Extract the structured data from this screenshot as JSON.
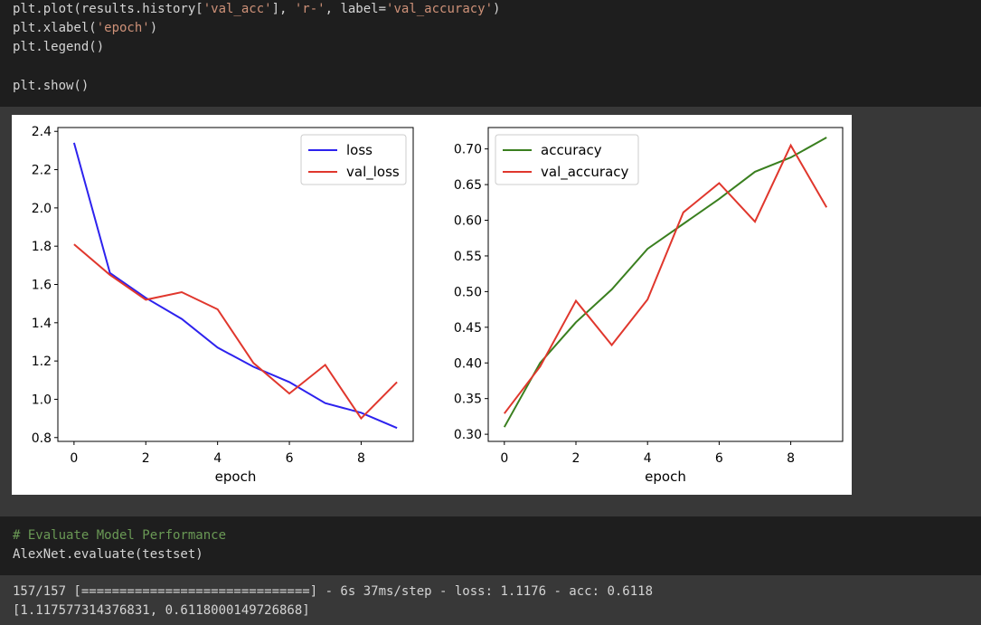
{
  "code_cell_1": {
    "lines": [
      {
        "prefix": "plt.plot(results.history[",
        "str1": "'val_acc'",
        "mid": "], ",
        "str2": "'r-'",
        "mid2": ", label=",
        "str3": "'val_accuracy'",
        "suffix": ")"
      },
      {
        "prefix": "plt.xlabel(",
        "str1": "'epoch'",
        "suffix": ")"
      },
      {
        "text": "plt.legend()"
      },
      {
        "text": ""
      },
      {
        "text": "plt.show()"
      }
    ]
  },
  "chart_data": [
    {
      "type": "line",
      "xlabel": "epoch",
      "ylabel": "",
      "xlim": [
        -0.45,
        9.45
      ],
      "ylim": [
        0.78,
        2.42
      ],
      "xticks": [
        0,
        2,
        4,
        6,
        8
      ],
      "yticks": [
        0.8,
        1.0,
        1.2,
        1.4,
        1.6,
        1.8,
        2.0,
        2.2,
        2.4
      ],
      "ytick_labels": [
        "0.8",
        "1.0",
        "1.2",
        "1.4",
        "1.6",
        "1.8",
        "2.0",
        "2.2",
        "2.4"
      ],
      "legend_position": "upper right",
      "grid": false,
      "x": [
        0,
        1,
        2,
        3,
        4,
        5,
        6,
        7,
        8,
        9
      ],
      "series": [
        {
          "name": "loss",
          "color": "#2d22ee",
          "values": [
            2.34,
            1.66,
            1.53,
            1.42,
            1.27,
            1.17,
            1.09,
            0.98,
            0.93,
            0.85
          ]
        },
        {
          "name": "val_loss",
          "color": "#e0372d",
          "values": [
            1.81,
            1.65,
            1.52,
            1.56,
            1.47,
            1.19,
            1.03,
            1.18,
            0.9,
            1.09
          ]
        }
      ]
    },
    {
      "type": "line",
      "xlabel": "epoch",
      "ylabel": "",
      "xlim": [
        -0.45,
        9.45
      ],
      "ylim": [
        0.29,
        0.73
      ],
      "xticks": [
        0,
        2,
        4,
        6,
        8
      ],
      "yticks": [
        0.3,
        0.35,
        0.4,
        0.45,
        0.5,
        0.55,
        0.6,
        0.65,
        0.7
      ],
      "ytick_labels": [
        "0.30",
        "0.35",
        "0.40",
        "0.45",
        "0.50",
        "0.55",
        "0.60",
        "0.65",
        "0.70"
      ],
      "legend_position": "upper left",
      "grid": false,
      "x": [
        0,
        1,
        2,
        3,
        4,
        5,
        6,
        7,
        8,
        9
      ],
      "series": [
        {
          "name": "accuracy",
          "color": "#3a7f1f",
          "values": [
            0.31,
            0.4,
            0.457,
            0.503,
            0.56,
            0.595,
            0.63,
            0.668,
            0.688,
            0.716
          ]
        },
        {
          "name": "val_accuracy",
          "color": "#e0372d",
          "values": [
            0.329,
            0.395,
            0.487,
            0.425,
            0.489,
            0.611,
            0.652,
            0.598,
            0.705,
            0.618
          ]
        }
      ]
    }
  ],
  "code_cell_2": {
    "comment": "# Evaluate Model Performance",
    "call": "AlexNet.evaluate(testset)"
  },
  "output_2": {
    "progress_line": "157/157 [==============================] - 6s 37ms/step - loss: 1.1176 - acc: 0.6118",
    "result_line": "[1.117577314376831, 0.6118000149726868]"
  }
}
